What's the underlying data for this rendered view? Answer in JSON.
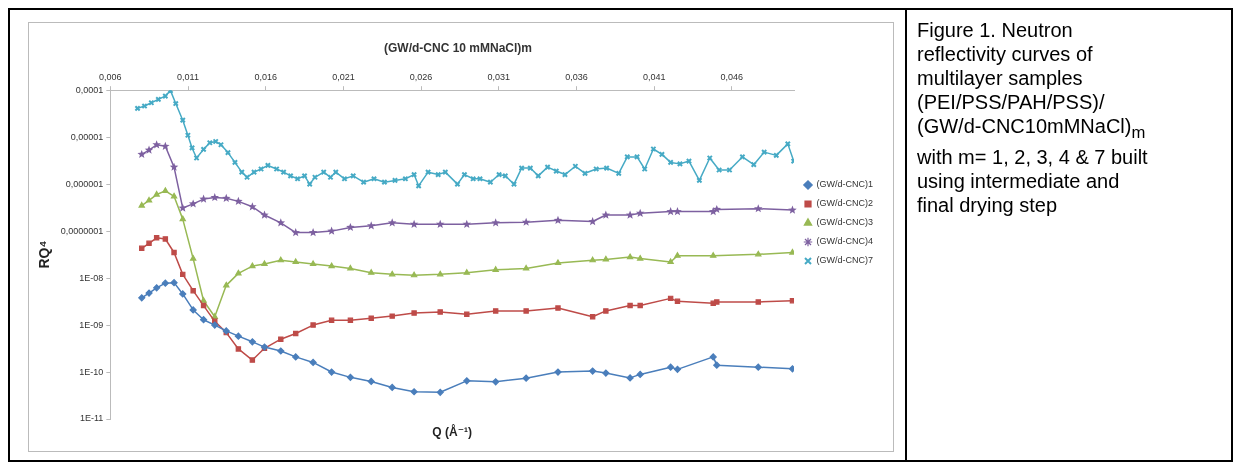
{
  "chart_data": {
    "type": "line",
    "title": "(GW/d-CNC 10 mMNaCl)m",
    "xlabel": "Q (Å⁻¹)",
    "ylabel": "RQ⁴",
    "log": "y",
    "grid": false,
    "legend": "right",
    "line_style": "solid",
    "xlim": [
      0.006,
      0.05
    ],
    "xticks": [
      {
        "value": 0.006,
        "label": "0,006"
      },
      {
        "value": 0.011,
        "label": "0,011"
      },
      {
        "value": 0.016,
        "label": "0,016"
      },
      {
        "value": 0.021,
        "label": "0,021"
      },
      {
        "value": 0.026,
        "label": "0,026"
      },
      {
        "value": 0.031,
        "label": "0,031"
      },
      {
        "value": 0.036,
        "label": "0,036"
      },
      {
        "value": 0.041,
        "label": "0,041"
      },
      {
        "value": 0.046,
        "label": "0,046"
      }
    ],
    "ylim": [
      1e-11,
      0.0001
    ],
    "yticks": [
      {
        "value": 0.0001,
        "label": "0,0001"
      },
      {
        "value": 1e-05,
        "label": "0,00001"
      },
      {
        "value": 1e-06,
        "label": "0,000001"
      },
      {
        "value": 1e-07,
        "label": "0,0000001"
      },
      {
        "value": 1e-08,
        "label": "1E-08"
      },
      {
        "value": 1e-09,
        "label": "1E-09"
      },
      {
        "value": 1e-10,
        "label": "1E-10"
      },
      {
        "value": 1e-11,
        "label": "1E-11"
      }
    ],
    "annotations": [
      "Figure 1. Neutron reflectivity curves of multilayer samples (PEI/PSS/PAH/PSS)/ (GW/d-CNC10mMNaCl)$_{m}$ with m= 1, 2, 3, 4 & 7 built using intermediate and final drying step"
    ],
    "series": [
      {
        "name": "(GW/d-CNC)1",
        "color": "#4a7ebb",
        "marker": "diamond",
        "x": [
          0.00802,
          0.00849,
          0.00898,
          0.00954,
          0.0101,
          0.01066,
          0.01133,
          0.012,
          0.01272,
          0.01346,
          0.01424,
          0.01514,
          0.01592,
          0.01697,
          0.01793,
          0.01905,
          0.02024,
          0.02145,
          0.02279,
          0.02414,
          0.02555,
          0.02723,
          0.02894,
          0.0308,
          0.03276,
          0.03481,
          0.03704,
          0.03789,
          0.03945,
          0.0401,
          0.04206,
          0.0425,
          0.0448,
          0.04503,
          0.0477,
          0.0499
        ],
        "values": [
          3.8e-09,
          4.8e-09,
          6.2e-09,
          7.8e-09,
          8e-09,
          4.6e-09,
          2.1e-09,
          1.3e-09,
          1e-09,
          7.5e-10,
          5.8e-10,
          4.4e-10,
          3.4e-10,
          2.8e-10,
          2.1e-10,
          1.6e-10,
          1e-10,
          7.7e-11,
          6.3e-11,
          4.7e-11,
          3.8e-11,
          3.7e-11,
          6.5e-11,
          6.2e-11,
          7.4e-11,
          1e-10,
          1.05e-10,
          9.5e-11,
          7.5e-11,
          8.9e-11,
          1.27e-10,
          1.14e-10,
          2.1e-10,
          1.4e-10,
          1.27e-10,
          1.17e-10
        ]
      },
      {
        "name": "(GW/d-CNC)2",
        "color": "#be4b48",
        "marker": "square",
        "x": [
          0.00802,
          0.00849,
          0.00898,
          0.00954,
          0.0101,
          0.01066,
          0.01133,
          0.012,
          0.01272,
          0.01346,
          0.01424,
          0.01514,
          0.01592,
          0.01697,
          0.01793,
          0.01905,
          0.02024,
          0.02145,
          0.02279,
          0.02414,
          0.02555,
          0.02723,
          0.02894,
          0.0308,
          0.03276,
          0.03481,
          0.03704,
          0.03789,
          0.03945,
          0.0401,
          0.04206,
          0.0425,
          0.0448,
          0.04503,
          0.0477,
          0.0499
        ],
        "values": [
          4.3e-08,
          5.5e-08,
          7.2e-08,
          6.8e-08,
          3.5e-08,
          1.2e-08,
          5.4e-09,
          2.6e-09,
          1.2e-09,
          6.9e-10,
          3.1e-10,
          1.8e-10,
          3.2e-10,
          5e-10,
          6.6e-10,
          1e-09,
          1.26e-09,
          1.26e-09,
          1.4e-09,
          1.55e-09,
          1.8e-09,
          1.9e-09,
          1.7e-09,
          2e-09,
          2e-09,
          2.3e-09,
          1.5e-09,
          2e-09,
          2.6e-09,
          2.6e-09,
          3.7e-09,
          3.2e-09,
          2.9e-09,
          3.1e-09,
          3.1e-09,
          3.3e-09
        ]
      },
      {
        "name": "(GW/d-CNC)3",
        "color": "#98b954",
        "marker": "triangle",
        "x": [
          0.00802,
          0.00849,
          0.00898,
          0.00954,
          0.0101,
          0.01066,
          0.01133,
          0.012,
          0.01272,
          0.01346,
          0.01424,
          0.01514,
          0.01592,
          0.01697,
          0.01793,
          0.01905,
          0.02024,
          0.02145,
          0.02279,
          0.02414,
          0.02555,
          0.02723,
          0.02894,
          0.0308,
          0.03276,
          0.03481,
          0.03704,
          0.03789,
          0.03945,
          0.0401,
          0.04206,
          0.0425,
          0.0448,
          0.0477,
          0.0499
        ],
        "values": [
          3.5e-07,
          4.5e-07,
          6e-07,
          7.2e-07,
          5.5e-07,
          1.8e-07,
          2.6e-08,
          3.3e-09,
          1.5e-09,
          7e-09,
          1.26e-08,
          1.8e-08,
          2e-08,
          2.4e-08,
          2.2e-08,
          2e-08,
          1.8e-08,
          1.6e-08,
          1.3e-08,
          1.2e-08,
          1.15e-08,
          1.2e-08,
          1.3e-08,
          1.5e-08,
          1.6e-08,
          2.1e-08,
          2.4e-08,
          2.5e-08,
          2.8e-08,
          2.6e-08,
          2.2e-08,
          3e-08,
          3e-08,
          3.2e-08,
          3.5e-08
        ]
      },
      {
        "name": "(GW/d-CNC)4",
        "color": "#7d60a0",
        "marker": "star",
        "x": [
          0.00802,
          0.00849,
          0.00898,
          0.00954,
          0.0101,
          0.01066,
          0.01133,
          0.012,
          0.01272,
          0.01346,
          0.01424,
          0.01514,
          0.01592,
          0.01697,
          0.01793,
          0.01905,
          0.02024,
          0.02145,
          0.02279,
          0.02414,
          0.02555,
          0.02723,
          0.02894,
          0.0308,
          0.03276,
          0.03481,
          0.03704,
          0.03789,
          0.03945,
          0.0401,
          0.04206,
          0.0425,
          0.0448,
          0.04503,
          0.0477,
          0.0499
        ],
        "values": [
          4.3e-06,
          5.3e-06,
          6.9e-06,
          6.4e-06,
          2.3e-06,
          3.1e-07,
          3.8e-07,
          4.8e-07,
          5.2e-07,
          5e-07,
          4.3e-07,
          3.3e-07,
          2.2e-07,
          1.5e-07,
          9.3e-08,
          9.3e-08,
          1e-07,
          1.2e-07,
          1.3e-07,
          1.5e-07,
          1.4e-07,
          1.4e-07,
          1.4e-07,
          1.5e-07,
          1.55e-07,
          1.7e-07,
          1.6e-07,
          2.2e-07,
          2.2e-07,
          2.4e-07,
          2.6e-07,
          2.6e-07,
          2.6e-07,
          2.9e-07,
          3e-07,
          2.8e-07
        ]
      },
      {
        "name": "(GW/d-CNC)7",
        "color": "#46aac5",
        "marker": "cross",
        "x": [
          0.00775,
          0.0082,
          0.00864,
          0.00909,
          0.00954,
          0.00987,
          0.01021,
          0.01066,
          0.01099,
          0.01126,
          0.01155,
          0.012,
          0.0124,
          0.01278,
          0.01312,
          0.01357,
          0.01402,
          0.01446,
          0.0148,
          0.01525,
          0.0157,
          0.01614,
          0.0167,
          0.01715,
          0.0176,
          0.01805,
          0.0185,
          0.01883,
          0.01917,
          0.01973,
          0.02017,
          0.02051,
          0.02107,
          0.02163,
          0.0223,
          0.02297,
          0.02364,
          0.02432,
          0.02499,
          0.02555,
          0.02584,
          0.02645,
          0.0271,
          0.02756,
          0.02834,
          0.02879,
          0.02935,
          0.02979,
          0.03046,
          0.03102,
          0.03142,
          0.03198,
          0.03247,
          0.03303,
          0.03354,
          0.03414,
          0.0347,
          0.03526,
          0.03593,
          0.03655,
          0.03727,
          0.03794,
          0.03872,
          0.03927,
          0.0399,
          0.04039,
          0.04095,
          0.0415,
          0.04206,
          0.04266,
          0.04324,
          0.04391,
          0.04458,
          0.04518,
          0.04585,
          0.04668,
          0.04741,
          0.04808,
          0.04886,
          0.0496,
          0.04998
        ],
        "values": [
          4.1e-05,
          4.6e-05,
          5.4e-05,
          6.4e-05,
          7.5e-05,
          9.8e-05,
          5.2e-05,
          2.3e-05,
          1.1e-05,
          5.9e-06,
          3.6e-06,
          5.5e-06,
          7.6e-06,
          8.1e-06,
          6.9e-06,
          4.7e-06,
          2.9e-06,
          1.8e-06,
          1.4e-06,
          1.8e-06,
          2.1e-06,
          2.5e-06,
          2.1e-06,
          1.8e-06,
          1.5e-06,
          1.3e-06,
          1.5e-06,
          1e-06,
          1.4e-06,
          1.8e-06,
          1.4e-06,
          1.8e-06,
          1.3e-06,
          1.5e-06,
          1.1e-06,
          1.3e-06,
          1.1e-06,
          1.2e-06,
          1.3e-06,
          1.6e-06,
          9.2e-07,
          1.8e-06,
          1.6e-06,
          1.8e-06,
          1e-06,
          1.6e-06,
          1.3e-06,
          1.3e-06,
          1.1e-06,
          1.6e-06,
          1.5e-06,
          1e-06,
          2.2e-06,
          2.2e-06,
          1.5e-06,
          2.3e-06,
          1.9e-06,
          1.6e-06,
          2.4e-06,
          1.7e-06,
          2.1e-06,
          2.2e-06,
          1.7e-06,
          3.8e-06,
          3.8e-06,
          2.1e-06,
          5.6e-06,
          4.3e-06,
          2.9e-06,
          2.7e-06,
          3.1e-06,
          1.2e-06,
          3.6e-06,
          2e-06,
          2e-06,
          3.8e-06,
          2.6e-06,
          4.8e-06,
          4.1e-06,
          7.2e-06,
          3.1e-06
        ]
      }
    ]
  }
}
